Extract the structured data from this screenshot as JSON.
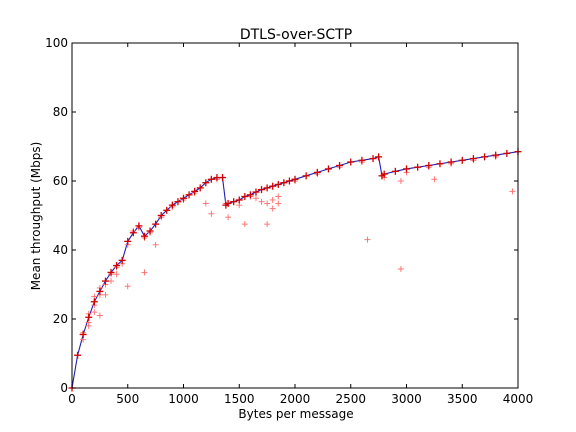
{
  "chart_data": {
    "type": "scatter",
    "title": "DTLS-over-SCTP",
    "xlabel": "Bytes per message",
    "ylabel": "Mean throughput (Mbps)",
    "xlim": [
      0,
      4000
    ],
    "ylim": [
      0,
      100
    ],
    "xticks": [
      "0",
      "500",
      "1000",
      "1500",
      "2000",
      "2500",
      "3000",
      "3500",
      "4000"
    ],
    "yticks": [
      "0",
      "20",
      "40",
      "60",
      "80",
      "100"
    ],
    "grid": false,
    "legend": "none",
    "colors": {
      "line": "#1f1fb4",
      "marker": "#d40000",
      "trial_marker": "#ff6b6b"
    },
    "series": [
      {
        "values_note": "mean",
        "x": [
          0,
          50,
          100,
          150,
          200,
          250,
          300,
          350,
          400,
          450,
          500,
          550,
          600,
          650,
          700,
          750,
          800,
          850,
          900,
          950,
          1000,
          1050,
          1100,
          1150,
          1200,
          1250,
          1300,
          1350,
          1380,
          1400,
          1450,
          1500,
          1550,
          1600,
          1650,
          1700,
          1750,
          1800,
          1850,
          1900,
          1950,
          2000,
          2100,
          2200,
          2300,
          2400,
          2500,
          2600,
          2700,
          2750,
          2780,
          2800,
          2900,
          3000,
          3100,
          3200,
          3300,
          3400,
          3500,
          3600,
          3700,
          3800,
          3900,
          4000
        ],
        "y": [
          0,
          9.5,
          15.5,
          20.5,
          25,
          28,
          31,
          33.5,
          35.5,
          37,
          42.5,
          45,
          47,
          44,
          45.5,
          47.5,
          50,
          51.5,
          53,
          54,
          55,
          56,
          57,
          58,
          59.5,
          60.5,
          61,
          61,
          53,
          53.5,
          54,
          54.5,
          55.5,
          56,
          56.8,
          57.5,
          58,
          58.5,
          59,
          59.5,
          60,
          60.5,
          61.5,
          62.5,
          63.5,
          64.5,
          65.5,
          66,
          66.5,
          67,
          61.5,
          62,
          62.8,
          63.5,
          64,
          64.5,
          65,
          65.5,
          66,
          66.5,
          67,
          67.5,
          68,
          68.5
        ]
      }
    ],
    "trials": {
      "x": [
        50,
        100,
        100,
        150,
        150,
        150,
        200,
        200,
        200,
        250,
        250,
        250,
        300,
        300,
        350,
        350,
        400,
        400,
        450,
        500,
        500,
        550,
        600,
        650,
        650,
        700,
        750,
        800,
        900,
        1000,
        1100,
        1200,
        1250,
        1300,
        1380,
        1400,
        1500,
        1550,
        1600,
        1650,
        1700,
        1750,
        1750,
        1800,
        1800,
        1850,
        1850,
        2000,
        2200,
        2400,
        2600,
        2650,
        2800,
        2950,
        2950,
        3000,
        3200,
        3250,
        3400,
        3600,
        3800,
        3950
      ],
      "y": [
        9.5,
        16,
        14,
        19,
        18,
        21.5,
        22,
        24,
        26.5,
        27,
        21,
        29,
        30,
        27,
        33,
        31,
        35,
        33,
        36,
        29.5,
        41.5,
        45.5,
        46.5,
        33.5,
        43.5,
        45,
        41.5,
        49.5,
        52.5,
        54.5,
        56.5,
        53.5,
        50.5,
        60.5,
        53.5,
        49.5,
        53,
        47.5,
        55.5,
        55,
        54,
        47.5,
        53.5,
        52,
        54.5,
        53.5,
        55.5,
        60,
        62,
        64,
        65.5,
        43,
        61,
        60,
        34.5,
        62.5,
        64,
        60.5,
        65,
        66,
        67,
        57
      ]
    }
  }
}
